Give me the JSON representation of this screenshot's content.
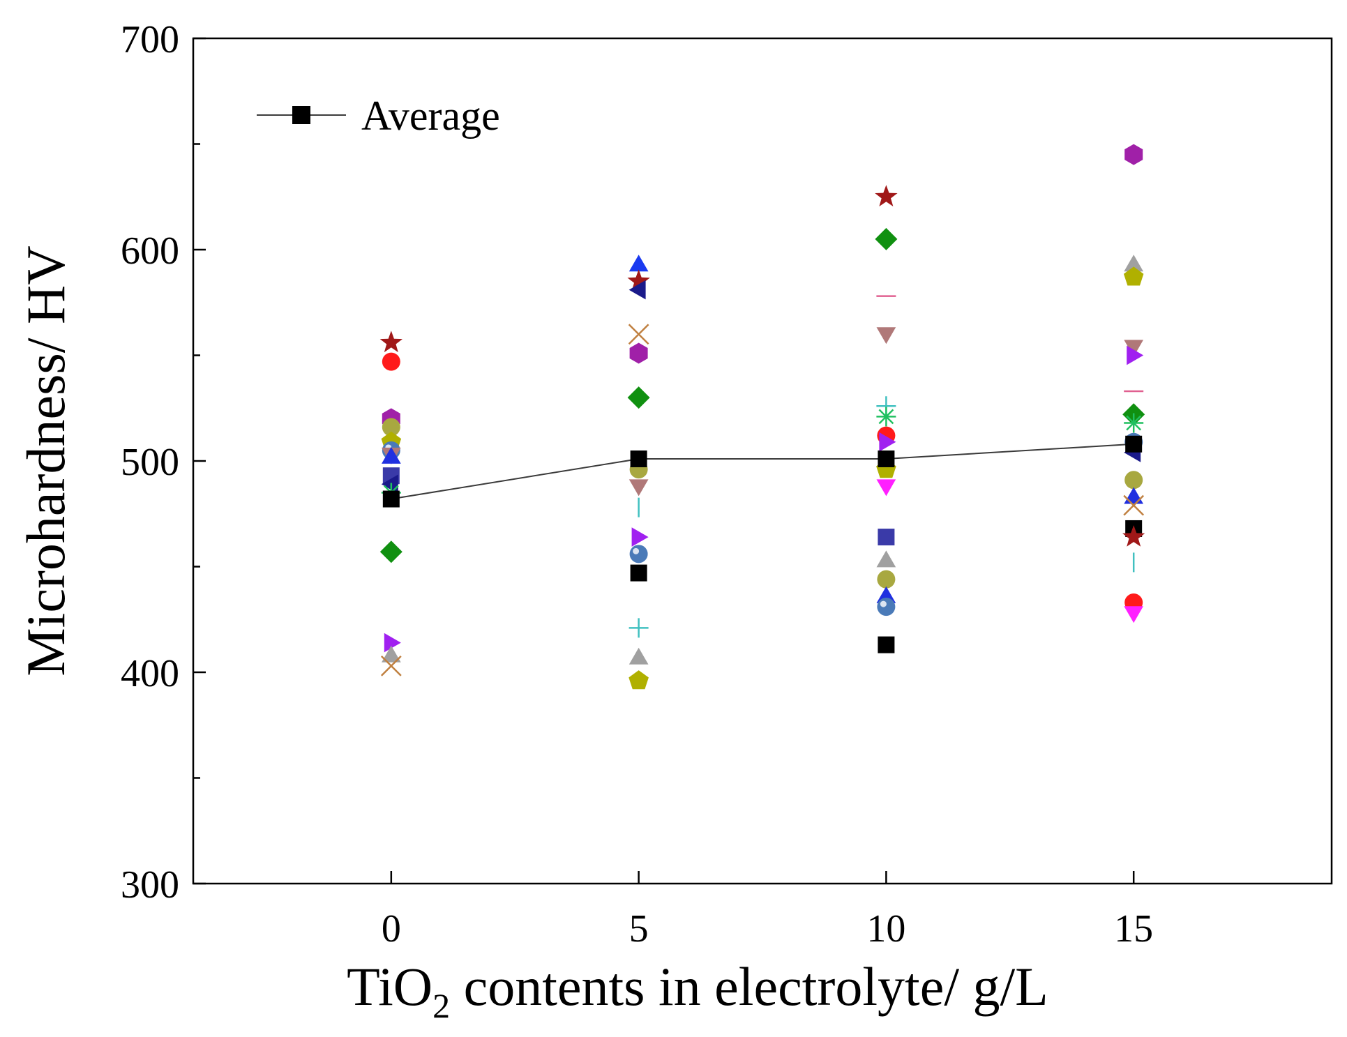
{
  "chart_data": {
    "type": "scatter",
    "title": "",
    "xlabel_main": "TiO",
    "xlabel_sub": "2",
    "xlabel_rest": " contents in electrolyte/ g/L",
    "ylabel": "Microhardness/ HV",
    "xlim": [
      -4,
      19
    ],
    "ylim": [
      300,
      700
    ],
    "x_ticks": [
      0,
      5,
      10,
      15
    ],
    "x_tick_labels": [
      "0",
      "5",
      "10",
      "15"
    ],
    "y_ticks": [
      300,
      400,
      500,
      600,
      700
    ],
    "y_tick_labels": [
      "300",
      "400",
      "500",
      "600",
      "700"
    ],
    "y_minor_ticks": [
      350,
      450,
      550,
      650
    ],
    "grid": false,
    "legend": {
      "position": "top-left",
      "entries": [
        "Average"
      ]
    },
    "average_series": {
      "name": "Average",
      "x": [
        0,
        5,
        10,
        15
      ],
      "y": [
        482,
        501,
        501,
        508
      ],
      "color": "#000000",
      "marker": "square"
    },
    "points": [
      {
        "x": 0,
        "y": 556,
        "marker": "star",
        "color": "#a01818"
      },
      {
        "x": 0,
        "y": 547,
        "marker": "circle",
        "color": "#ff1a1a"
      },
      {
        "x": 0,
        "y": 520,
        "marker": "hexagon",
        "color": "#a020a8"
      },
      {
        "x": 0,
        "y": 516,
        "marker": "circle",
        "color": "#a8a840"
      },
      {
        "x": 0,
        "y": 509,
        "marker": "pentagon",
        "color": "#b0b000"
      },
      {
        "x": 0,
        "y": 505,
        "marker": "ball",
        "color": "#4a7ab8"
      },
      {
        "x": 0,
        "y": 503,
        "marker": "triangle-down",
        "color": "#b07878"
      },
      {
        "x": 0,
        "y": 502,
        "marker": "triangle-up",
        "color": "#2030e0"
      },
      {
        "x": 0,
        "y": 493,
        "marker": "square",
        "color": "#3a3aa8"
      },
      {
        "x": 0,
        "y": 489,
        "marker": "triangle-left",
        "color": "#1a1a8a"
      },
      {
        "x": 0,
        "y": 485,
        "marker": "asterisk",
        "color": "#20c060"
      },
      {
        "x": 0,
        "y": 457,
        "marker": "diamond",
        "color": "#109010"
      },
      {
        "x": 0,
        "y": 414,
        "marker": "triangle-right",
        "color": "#a020f0"
      },
      {
        "x": 0,
        "y": 408,
        "marker": "triangle-up",
        "color": "#a0a0a0"
      },
      {
        "x": 0,
        "y": 403,
        "marker": "x",
        "color": "#c08040"
      },
      {
        "x": 5,
        "y": 593,
        "marker": "triangle-up",
        "color": "#1a3af0"
      },
      {
        "x": 5,
        "y": 585,
        "marker": "star",
        "color": "#a01818"
      },
      {
        "x": 5,
        "y": 581,
        "marker": "triangle-left",
        "color": "#1a1a8a"
      },
      {
        "x": 5,
        "y": 560,
        "marker": "x",
        "color": "#c08040"
      },
      {
        "x": 5,
        "y": 551,
        "marker": "hexagon",
        "color": "#a020a8"
      },
      {
        "x": 5,
        "y": 530,
        "marker": "diamond",
        "color": "#109010"
      },
      {
        "x": 5,
        "y": 496,
        "marker": "circle",
        "color": "#a8a840"
      },
      {
        "x": 5,
        "y": 488,
        "marker": "triangle-down",
        "color": "#b07878"
      },
      {
        "x": 5,
        "y": 478,
        "marker": "dash-v",
        "color": "#40c0c0"
      },
      {
        "x": 5,
        "y": 464,
        "marker": "triangle-right",
        "color": "#a020f0"
      },
      {
        "x": 5,
        "y": 456,
        "marker": "ball",
        "color": "#4a7ab8"
      },
      {
        "x": 5,
        "y": 447,
        "marker": "square",
        "color": "#000000"
      },
      {
        "x": 5,
        "y": 421,
        "marker": "plus",
        "color": "#40c0c0"
      },
      {
        "x": 5,
        "y": 407,
        "marker": "triangle-up",
        "color": "#a0a0a0"
      },
      {
        "x": 5,
        "y": 396,
        "marker": "pentagon",
        "color": "#b0b000"
      },
      {
        "x": 10,
        "y": 625,
        "marker": "star",
        "color": "#a01818"
      },
      {
        "x": 10,
        "y": 605,
        "marker": "diamond",
        "color": "#109010"
      },
      {
        "x": 10,
        "y": 578,
        "marker": "dash-h",
        "color": "#e06090"
      },
      {
        "x": 10,
        "y": 560,
        "marker": "triangle-down",
        "color": "#b07878"
      },
      {
        "x": 10,
        "y": 526,
        "marker": "plus",
        "color": "#40c0c0"
      },
      {
        "x": 10,
        "y": 521,
        "marker": "asterisk",
        "color": "#20c060"
      },
      {
        "x": 10,
        "y": 512,
        "marker": "circle",
        "color": "#ff1a1a"
      },
      {
        "x": 10,
        "y": 509,
        "marker": "triangle-right",
        "color": "#a020f0"
      },
      {
        "x": 10,
        "y": 496,
        "marker": "pentagon",
        "color": "#b0b000"
      },
      {
        "x": 10,
        "y": 488,
        "marker": "triangle-down",
        "color": "#ff20ff"
      },
      {
        "x": 10,
        "y": 464,
        "marker": "square",
        "color": "#3a3aa8"
      },
      {
        "x": 10,
        "y": 453,
        "marker": "triangle-up",
        "color": "#a0a0a0"
      },
      {
        "x": 10,
        "y": 444,
        "marker": "circle",
        "color": "#a8a840"
      },
      {
        "x": 10,
        "y": 436,
        "marker": "triangle-up",
        "color": "#2030e0"
      },
      {
        "x": 10,
        "y": 431,
        "marker": "ball",
        "color": "#4a7ab8"
      },
      {
        "x": 10,
        "y": 413,
        "marker": "square",
        "color": "#000000"
      },
      {
        "x": 15,
        "y": 645,
        "marker": "hexagon",
        "color": "#a020a8"
      },
      {
        "x": 15,
        "y": 593,
        "marker": "triangle-up",
        "color": "#a0a0a0"
      },
      {
        "x": 15,
        "y": 587,
        "marker": "pentagon",
        "color": "#b0b000"
      },
      {
        "x": 15,
        "y": 554,
        "marker": "triangle-down",
        "color": "#b07878"
      },
      {
        "x": 15,
        "y": 550,
        "marker": "triangle-right",
        "color": "#a020f0"
      },
      {
        "x": 15,
        "y": 533,
        "marker": "dash-h",
        "color": "#e06090"
      },
      {
        "x": 15,
        "y": 522,
        "marker": "diamond",
        "color": "#109010"
      },
      {
        "x": 15,
        "y": 518,
        "marker": "asterisk",
        "color": "#20c060"
      },
      {
        "x": 15,
        "y": 509,
        "marker": "ball",
        "color": "#4a7ab8"
      },
      {
        "x": 15,
        "y": 504,
        "marker": "triangle-left",
        "color": "#1a1a8a"
      },
      {
        "x": 15,
        "y": 491,
        "marker": "circle",
        "color": "#a8a840"
      },
      {
        "x": 15,
        "y": 483,
        "marker": "triangle-up",
        "color": "#2030e0"
      },
      {
        "x": 15,
        "y": 479,
        "marker": "x",
        "color": "#c08040"
      },
      {
        "x": 15,
        "y": 468,
        "marker": "square",
        "color": "#000000"
      },
      {
        "x": 15,
        "y": 464,
        "marker": "star",
        "color": "#a01818"
      },
      {
        "x": 15,
        "y": 452,
        "marker": "dash-v",
        "color": "#40c0c0"
      },
      {
        "x": 15,
        "y": 433,
        "marker": "circle",
        "color": "#ff1a1a"
      },
      {
        "x": 15,
        "y": 428,
        "marker": "triangle-down",
        "color": "#ff20ff"
      }
    ]
  }
}
